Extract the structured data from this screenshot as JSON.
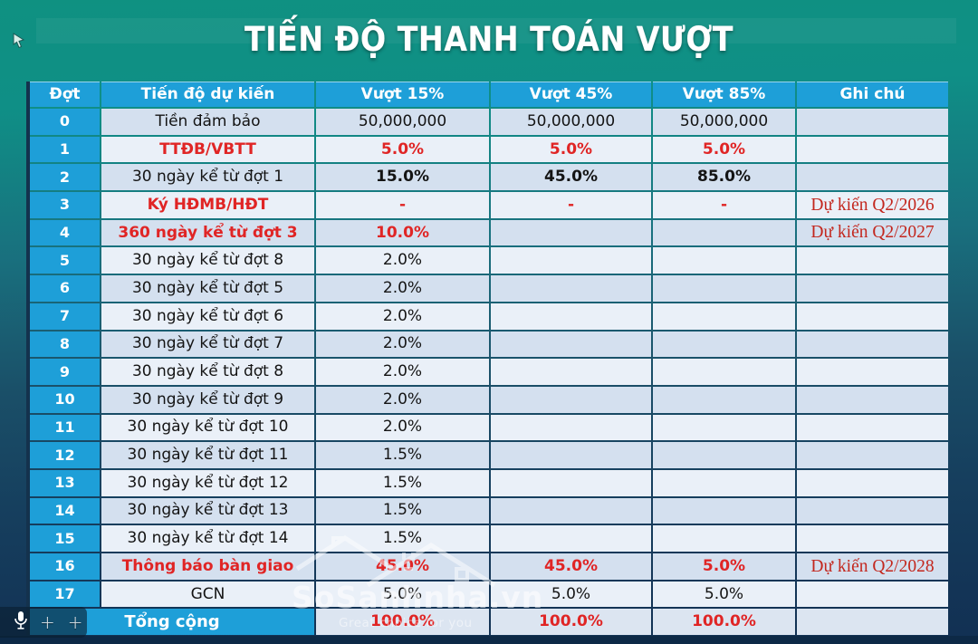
{
  "title": "TIẾN ĐỘ THANH TOÁN VƯỢT",
  "table": {
    "headers": [
      "Đợt",
      "Tiến độ dự kiến",
      "Vượt 15%",
      "Vượt 45%",
      "Vượt 85%",
      "Ghi chú"
    ],
    "rows": [
      {
        "dot": "0",
        "desc": "Tiền đảm bảo",
        "v15": "50,000,000",
        "v45": "50,000,000",
        "v85": "50,000,000",
        "note": "",
        "style": "normal"
      },
      {
        "dot": "1",
        "desc": "TTĐB/VBTT",
        "v15": "5.0%",
        "v45": "5.0%",
        "v85": "5.0%",
        "note": "",
        "style": "red"
      },
      {
        "dot": "2",
        "desc": "30 ngày kể từ đợt 1",
        "v15": "15.0%",
        "v45": "45.0%",
        "v85": "85.0%",
        "note": "",
        "style": "bold-values"
      },
      {
        "dot": "3",
        "desc": "Ký HĐMB/HĐT",
        "v15": "-",
        "v45": "-",
        "v85": "-",
        "note": "Dự kiến Q2/2026",
        "style": "red"
      },
      {
        "dot": "4",
        "desc": "360 ngày kể từ đợt 3",
        "v15": "10.0%",
        "v45": "",
        "v85": "",
        "note": "Dự kiến Q2/2027",
        "style": "red"
      },
      {
        "dot": "5",
        "desc": "30 ngày kể từ đợt 8",
        "v15": "2.0%",
        "v45": "",
        "v85": "",
        "note": "",
        "style": "normal"
      },
      {
        "dot": "6",
        "desc": "30 ngày kể từ đợt 5",
        "v15": "2.0%",
        "v45": "",
        "v85": "",
        "note": "",
        "style": "normal"
      },
      {
        "dot": "7",
        "desc": "30 ngày kể từ đợt 6",
        "v15": "2.0%",
        "v45": "",
        "v85": "",
        "note": "",
        "style": "normal"
      },
      {
        "dot": "8",
        "desc": "30 ngày kể từ đợt 7",
        "v15": "2.0%",
        "v45": "",
        "v85": "",
        "note": "",
        "style": "normal"
      },
      {
        "dot": "9",
        "desc": "30 ngày kể từ đợt 8",
        "v15": "2.0%",
        "v45": "",
        "v85": "",
        "note": "",
        "style": "normal"
      },
      {
        "dot": "10",
        "desc": "30 ngày kể từ đợt 9",
        "v15": "2.0%",
        "v45": "",
        "v85": "",
        "note": "",
        "style": "normal"
      },
      {
        "dot": "11",
        "desc": "30 ngày kể từ đợt 10",
        "v15": "2.0%",
        "v45": "",
        "v85": "",
        "note": "",
        "style": "normal"
      },
      {
        "dot": "12",
        "desc": "30 ngày kể từ đợt 11",
        "v15": "1.5%",
        "v45": "",
        "v85": "",
        "note": "",
        "style": "normal"
      },
      {
        "dot": "13",
        "desc": "30 ngày kể từ đợt 12",
        "v15": "1.5%",
        "v45": "",
        "v85": "",
        "note": "",
        "style": "normal"
      },
      {
        "dot": "14",
        "desc": "30 ngày kể từ đợt 13",
        "v15": "1.5%",
        "v45": "",
        "v85": "",
        "note": "",
        "style": "normal"
      },
      {
        "dot": "15",
        "desc": "30 ngày kể từ đợt 14",
        "v15": "1.5%",
        "v45": "",
        "v85": "",
        "note": "",
        "style": "normal"
      },
      {
        "dot": "16",
        "desc": "Thông báo bàn giao",
        "v15": "45.0%",
        "v45": "45.0%",
        "v85": "5.0%",
        "note": "Dự kiến Q2/2028",
        "style": "red"
      },
      {
        "dot": "17",
        "desc": "GCN",
        "v15": "5.0%",
        "v45": "5.0%",
        "v85": "5.0%",
        "note": "",
        "style": "normal"
      }
    ],
    "total": {
      "label": "Tổng cộng",
      "v15": "100.0%",
      "v45": "100.0%",
      "v85": "100.0%",
      "note": ""
    }
  },
  "watermark": {
    "brand": "SoSanhnha.vn",
    "tagline": "Great choice for you",
    "icon": "house-outline-icon"
  },
  "overlay": {
    "icons": [
      "microphone-icon",
      "crosshair-icon",
      "cursor-icon"
    ],
    "crosshair_glyph": "+"
  },
  "colors": {
    "header_cyan": "#1E9FD8",
    "row_light": "#EAF0F8",
    "row_dark": "#D4E0EF",
    "accent_red": "#E02525",
    "note_red": "#C3271E",
    "bg_teal_top": "#0F9181",
    "bg_navy_bottom": "#123053",
    "bottom_strip": "#0D2946"
  }
}
